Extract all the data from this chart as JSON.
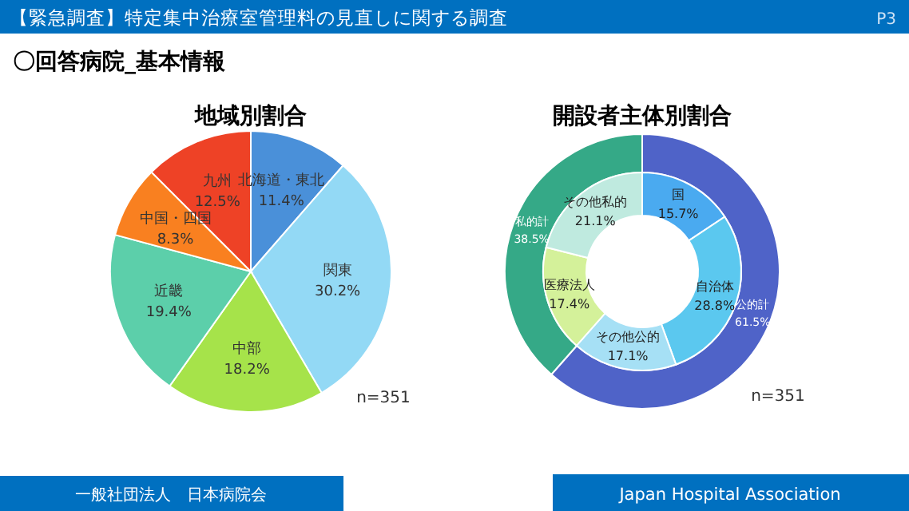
{
  "chart_data": [
    {
      "type": "other",
      "title": "【緊急調査】特定集中治療室管理料の見直しに関する調査",
      "subtitle": "〇回答病院_基本情報",
      "annotations": [
        "P3",
        "一般社団法人　日本病院会",
        "Japan Hospital Association"
      ]
    },
    {
      "type": "pie",
      "title": "地域別割合",
      "categories": [
        "北海道・東北",
        "関東",
        "中部",
        "近畿",
        "中国・四国",
        "九州"
      ],
      "values": [
        11.4,
        30.2,
        18.2,
        19.4,
        8.3,
        12.5
      ],
      "value_labels": [
        "11.4%",
        "30.2%",
        "18.2%",
        "19.4%",
        "8.3%",
        "12.5%"
      ],
      "colors": [
        "#4a90d9",
        "#93d9f5",
        "#a6e34a",
        "#5ccfaa",
        "#f98020",
        "#ee4226"
      ],
      "annotations": [
        "n=351"
      ]
    },
    {
      "type": "donut",
      "title": "開設者主体別割合",
      "categories": [
        "公的計",
        "私的計"
      ],
      "values": [
        61.5,
        38.5
      ],
      "value_labels": [
        "61.5%",
        "38.5%"
      ],
      "colors": [
        "#4f63c8",
        "#35a987"
      ],
      "annotations": [
        "n=351"
      ]
    },
    {
      "type": "donut",
      "categories": [
        "国",
        "自治体",
        "その他公的",
        "医療法人",
        "その他私的"
      ],
      "values": [
        15.7,
        28.8,
        17.1,
        17.4,
        21.1
      ],
      "value_labels": [
        "15.7%",
        "28.8%",
        "17.1%",
        "17.4%",
        "21.1%"
      ],
      "colors": [
        "#4aaaf0",
        "#5bc8ef",
        "#a6e0f5",
        "#d4f19a",
        "#bfeadf"
      ]
    }
  ]
}
